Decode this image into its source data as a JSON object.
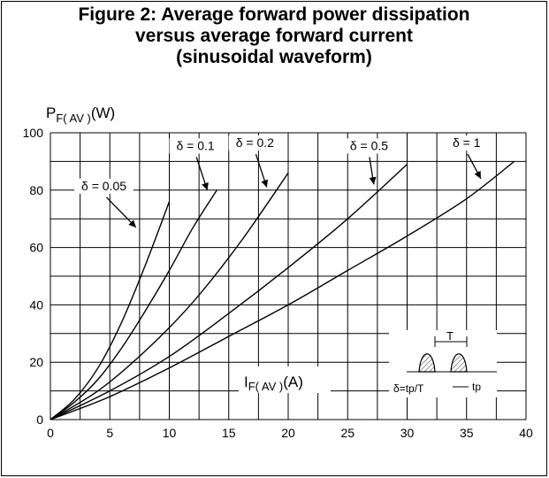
{
  "title_lines": [
    "Figure 2: Average forward power dissipation",
    "versus average forward current",
    "(sinusoidal waveform)"
  ],
  "chart_data": {
    "type": "line",
    "title": "Figure 2: Average forward power dissipation versus average forward current (sinusoidal waveform)",
    "ylabel": {
      "main": "P",
      "sub": "F( AV )",
      "unit": "(W)"
    },
    "xlabel": {
      "main": "I",
      "sub": "F( AV )",
      "unit": "(A)"
    },
    "xlim": [
      0,
      40
    ],
    "ylim": [
      0,
      100
    ],
    "x_ticks": [
      0,
      5,
      10,
      15,
      20,
      25,
      30,
      35,
      40
    ],
    "y_ticks": [
      0,
      20,
      40,
      60,
      80,
      100
    ],
    "grid": true,
    "series": [
      {
        "name": "δ = 0.05",
        "x": [
          0,
          2,
          4,
          6,
          8,
          10
        ],
        "y": [
          0,
          7,
          18,
          34,
          54,
          76
        ]
      },
      {
        "name": "δ = 0.1",
        "x": [
          0,
          2,
          4,
          6,
          8,
          10,
          12,
          14
        ],
        "y": [
          0,
          6,
          14,
          25,
          38,
          52,
          67,
          80
        ]
      },
      {
        "name": "δ = 0.2",
        "x": [
          0,
          4,
          8,
          12,
          16,
          20
        ],
        "y": [
          0,
          10,
          24,
          41,
          62,
          86
        ]
      },
      {
        "name": "δ = 0.5",
        "x": [
          0,
          5,
          10,
          15,
          20,
          25,
          30
        ],
        "y": [
          0,
          10,
          22,
          37,
          53,
          70,
          89
        ]
      },
      {
        "name": "δ = 1",
        "x": [
          0,
          5,
          10,
          15,
          20,
          25,
          30,
          35,
          39
        ],
        "y": [
          0,
          8,
          18,
          29,
          40,
          52,
          64,
          77,
          90
        ]
      }
    ],
    "annotations": [
      {
        "text": "δ = 0.05",
        "label_at": [
          4.5,
          80
        ],
        "arrow_to": [
          7.2,
          67
        ]
      },
      {
        "text": "δ = 0.1",
        "label_at": [
          12.2,
          94
        ],
        "arrow_to": [
          13.2,
          80
        ]
      },
      {
        "text": "δ = 0.2",
        "label_at": [
          17.2,
          95
        ],
        "arrow_to": [
          18.2,
          81
        ]
      },
      {
        "text": "δ = 0.5",
        "label_at": [
          26.8,
          94
        ],
        "arrow_to": [
          27.2,
          82
        ]
      },
      {
        "text": "δ = 1",
        "label_at": [
          35.0,
          95
        ],
        "arrow_to": [
          36.2,
          84
        ]
      }
    ],
    "inset": {
      "period_label": "T",
      "duty_label": "δ=tp/T",
      "pulse_label": "tp"
    }
  }
}
